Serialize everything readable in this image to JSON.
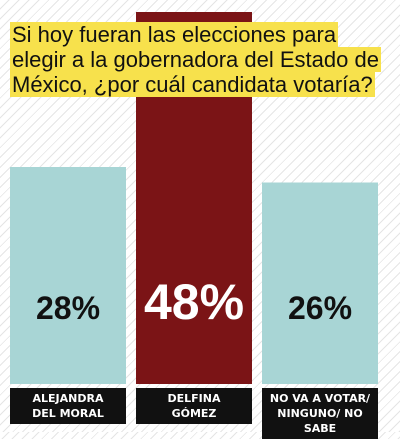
{
  "chart_data": {
    "type": "bar",
    "title": "Si hoy fueran las elecciones para elegir a la gobernadora del Estado de México, ¿por cuál candidata votaría?",
    "categories": [
      "ALEJANDRA DEL MORAL",
      "DELFINA GÓMEZ",
      "NO VA A VOTAR/ NINGUNO/ NO SABE"
    ],
    "values": [
      28,
      48,
      26
    ],
    "value_labels": [
      "28%",
      "48%",
      "26%"
    ],
    "colors": [
      "#a8d5d5",
      "#7b1416",
      "#a8d5d5"
    ],
    "ylim": [
      0,
      48
    ],
    "grid": false,
    "legend": "none"
  },
  "labels": {
    "cat1_line1": "ALEJANDRA",
    "cat1_line2": "DEL MORAL",
    "cat2_line1": "DELFINA",
    "cat2_line2": "GÓMEZ",
    "cat3_line1": "NO VA A VOTAR/",
    "cat3_line2": "NINGUNO/ NO SABE"
  }
}
